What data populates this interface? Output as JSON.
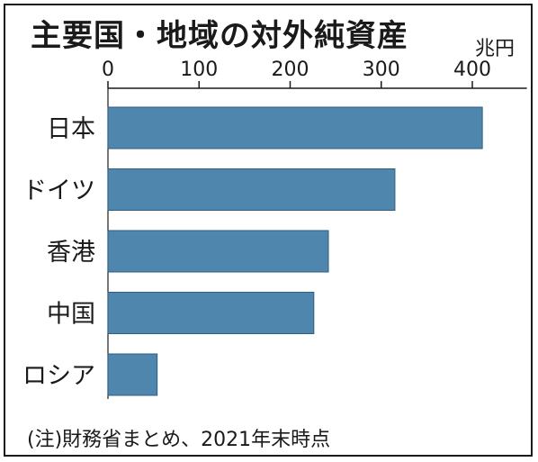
{
  "chart_data": {
    "type": "bar",
    "orientation": "horizontal",
    "title": "主要国・地域の対外純資産",
    "unit": "兆円",
    "categories": [
      "日本",
      "ドイツ",
      "香港",
      "中国",
      "ロシア"
    ],
    "values": [
      411,
      315,
      242,
      226,
      54
    ],
    "xlim": [
      0,
      450
    ],
    "xticks": [
      0,
      100,
      200,
      300,
      400
    ],
    "note": "(注)財務省まとめ、2021年末時点",
    "bar_color": "#4e86ad",
    "grid": false,
    "legend": "none"
  }
}
